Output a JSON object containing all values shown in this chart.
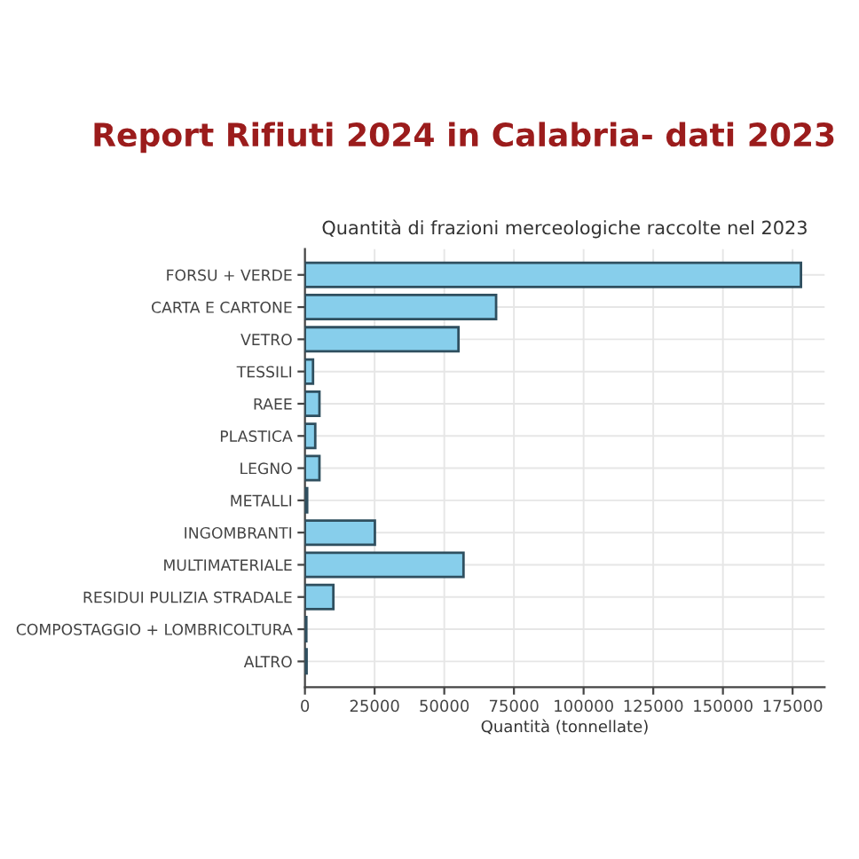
{
  "chart_data": {
    "type": "bar",
    "orientation": "horizontal",
    "title": "Report Rifiuti 2024 in Calabria- dati 2023",
    "subtitle": "Quantità di frazioni merceologiche raccolte nel 2023",
    "xlabel": "Quantità (tonnellate)",
    "categories": [
      "FORSU + VERDE",
      "CARTA E CARTONE",
      "VETRO",
      "TESSILI",
      "RAEE",
      "PLASTICA",
      "LEGNO",
      "METALLI",
      "INGOMBRANTI",
      "MULTIMATERIALE",
      "RESIDUI PULIZIA STRADALE",
      "COMPOSTAGGIO + LOMBRICOLTURA",
      "ALTRO"
    ],
    "values": [
      178000,
      68600,
      55100,
      2900,
      5200,
      3700,
      5200,
      800,
      25100,
      56900,
      10200,
      500,
      600
    ],
    "color": "#87ceeb",
    "xlim": [
      0,
      186500
    ],
    "xticks": [
      0,
      25000,
      50000,
      75000,
      100000,
      125000,
      150000,
      175000
    ],
    "grid": true
  }
}
